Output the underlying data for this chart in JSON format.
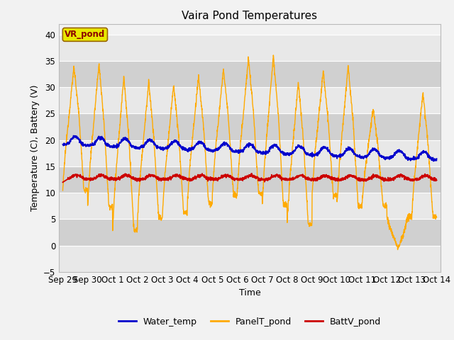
{
  "title": "Vaira Pond Temperatures",
  "xlabel": "Time",
  "ylabel": "Temperature (C), Battery (V)",
  "ylim": [
    -5,
    42
  ],
  "yticks": [
    -5,
    0,
    5,
    10,
    15,
    20,
    25,
    30,
    35,
    40
  ],
  "x_labels": [
    "Sep 29",
    "Sep 30",
    "Oct 1",
    "Oct 2",
    "Oct 3",
    "Oct 4",
    "Oct 5",
    "Oct 6",
    "Oct 7",
    "Oct 8",
    "Oct 9",
    "Oct 10",
    "Oct 11",
    "Oct 12",
    "Oct 13",
    "Oct 14"
  ],
  "water_color": "#0000cc",
  "panel_color": "#ffaa00",
  "batt_color": "#cc0000",
  "bg_color_light": "#e8e8e8",
  "bg_color_dark": "#d0d0d0",
  "grid_color": "#ffffff",
  "fig_bg": "#f2f2f2",
  "legend_box_color": "#e8e800",
  "legend_box_edge": "#996600",
  "legend_box_text": "VR_pond",
  "title_fontsize": 11,
  "label_fontsize": 9,
  "tick_fontsize": 8.5
}
